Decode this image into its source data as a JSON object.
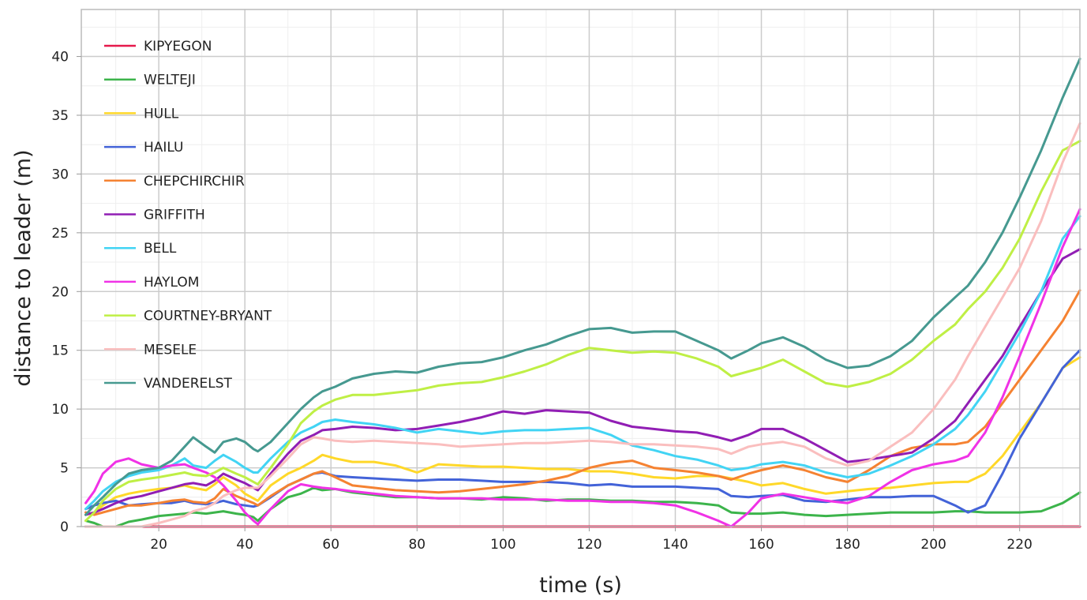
{
  "chart_data": {
    "type": "line",
    "title": "",
    "xlabel": "time (s)",
    "ylabel": "distance to leader (m)",
    "xlim": [
      2,
      234
    ],
    "ylim": [
      0,
      44
    ],
    "x_ticks": [
      20,
      40,
      60,
      80,
      100,
      120,
      140,
      160,
      180,
      200,
      220
    ],
    "y_ticks": [
      0,
      5,
      10,
      15,
      20,
      25,
      30,
      35,
      40
    ],
    "grid": true,
    "legend_position": "top-left",
    "x": [
      3,
      5,
      7,
      10,
      13,
      16,
      20,
      23,
      26,
      28,
      31,
      33,
      35,
      38,
      40,
      42,
      43,
      46,
      50,
      53,
      56,
      58,
      61,
      65,
      70,
      75,
      80,
      85,
      90,
      95,
      100,
      105,
      110,
      115,
      120,
      125,
      130,
      135,
      140,
      145,
      150,
      153,
      157,
      160,
      165,
      170,
      175,
      180,
      185,
      190,
      195,
      200,
      205,
      208,
      212,
      216,
      220,
      225,
      230,
      234
    ],
    "series": [
      {
        "name": "KIPYEGON",
        "color": "#e6194b",
        "values": [
          0,
          0,
          0,
          0,
          0,
          0,
          0,
          0,
          0,
          0,
          0,
          0,
          0,
          0,
          0,
          0,
          0,
          0,
          0,
          0,
          0,
          0,
          0,
          0,
          0,
          0,
          0,
          0,
          0,
          0,
          0,
          0,
          0,
          0,
          0,
          0,
          0,
          0,
          0,
          0,
          0,
          0,
          0,
          0,
          0,
          0,
          0,
          0,
          0,
          0,
          0,
          0,
          0,
          0,
          0,
          0,
          0,
          0,
          0,
          0
        ]
      },
      {
        "name": "WELTEJI",
        "color": "#3cb44b",
        "values": [
          0.5,
          0.3,
          0,
          0,
          0.4,
          0.6,
          0.9,
          1.0,
          1.1,
          1.2,
          1.1,
          1.2,
          1.3,
          1.1,
          1.0,
          0.8,
          0.5,
          1.5,
          2.5,
          2.8,
          3.3,
          3.1,
          3.2,
          2.9,
          2.7,
          2.5,
          2.5,
          2.4,
          2.4,
          2.3,
          2.5,
          2.4,
          2.2,
          2.3,
          2.3,
          2.2,
          2.2,
          2.1,
          2.1,
          2.0,
          1.8,
          1.2,
          1.1,
          1.1,
          1.2,
          1.0,
          0.9,
          1.0,
          1.1,
          1.2,
          1.2,
          1.2,
          1.3,
          1.3,
          1.2,
          1.2,
          1.2,
          1.3,
          2.0,
          2.9
        ]
      },
      {
        "name": "HULL",
        "color": "#ffd829",
        "values": [
          1.0,
          1.2,
          1.8,
          2.5,
          2.8,
          3.0,
          3.2,
          3.3,
          3.5,
          3.3,
          3.1,
          3.6,
          4.2,
          3.5,
          2.8,
          2.4,
          2.2,
          3.5,
          4.5,
          5.0,
          5.6,
          6.1,
          5.8,
          5.5,
          5.5,
          5.2,
          4.6,
          5.3,
          5.2,
          5.1,
          5.1,
          5.0,
          4.9,
          4.9,
          4.7,
          4.7,
          4.5,
          4.2,
          4.1,
          4.3,
          4.3,
          4.1,
          3.8,
          3.5,
          3.7,
          3.2,
          2.8,
          3.0,
          3.2,
          3.3,
          3.5,
          3.7,
          3.8,
          3.8,
          4.5,
          6.0,
          8.0,
          10.5,
          13.5,
          14.4
        ]
      },
      {
        "name": "HAILU",
        "color": "#4363d8",
        "values": [
          1.5,
          1.8,
          2.0,
          2.2,
          1.8,
          1.9,
          2.0,
          2.0,
          2.2,
          2.0,
          1.9,
          2.0,
          2.2,
          1.9,
          1.8,
          1.7,
          1.8,
          2.5,
          3.5,
          4.0,
          4.5,
          4.6,
          4.3,
          4.2,
          4.1,
          4.0,
          3.9,
          4.0,
          4.0,
          3.9,
          3.8,
          3.8,
          3.8,
          3.7,
          3.5,
          3.6,
          3.4,
          3.4,
          3.4,
          3.3,
          3.2,
          2.6,
          2.5,
          2.6,
          2.7,
          2.2,
          2.1,
          2.3,
          2.5,
          2.5,
          2.6,
          2.6,
          1.8,
          1.2,
          1.8,
          4.5,
          7.5,
          10.5,
          13.5,
          15.0
        ]
      },
      {
        "name": "CHEPCHIRCHIR",
        "color": "#f58231",
        "values": [
          1.2,
          1.0,
          1.2,
          1.5,
          1.8,
          1.8,
          2.0,
          2.2,
          2.3,
          2.1,
          2.0,
          2.4,
          3.2,
          2.6,
          2.3,
          2.0,
          1.8,
          2.6,
          3.5,
          4.0,
          4.5,
          4.7,
          4.2,
          3.5,
          3.3,
          3.1,
          3.0,
          2.9,
          3.0,
          3.2,
          3.4,
          3.6,
          3.9,
          4.3,
          5.0,
          5.4,
          5.6,
          5.0,
          4.8,
          4.6,
          4.3,
          4.0,
          4.5,
          4.8,
          5.2,
          4.8,
          4.2,
          3.8,
          4.8,
          6.0,
          6.7,
          7.0,
          7.0,
          7.2,
          8.5,
          10.5,
          12.5,
          15.0,
          17.5,
          20.1
        ]
      },
      {
        "name": "GRIFFITH",
        "color": "#911eb4",
        "values": [
          1.0,
          1.2,
          1.5,
          2.0,
          2.4,
          2.6,
          3.0,
          3.3,
          3.6,
          3.7,
          3.5,
          3.9,
          4.5,
          4.0,
          3.7,
          3.3,
          3.1,
          4.5,
          6.2,
          7.3,
          7.8,
          8.2,
          8.3,
          8.5,
          8.4,
          8.2,
          8.3,
          8.6,
          8.9,
          9.3,
          9.8,
          9.6,
          9.9,
          9.8,
          9.7,
          9.0,
          8.5,
          8.3,
          8.1,
          8.0,
          7.6,
          7.3,
          7.8,
          8.3,
          8.3,
          7.5,
          6.5,
          5.5,
          5.7,
          6.0,
          6.3,
          7.5,
          9.0,
          10.5,
          12.5,
          14.5,
          17.0,
          20.0,
          22.8,
          23.6
        ]
      },
      {
        "name": "BELL",
        "color": "#42d4f4",
        "values": [
          1.5,
          2.2,
          3.0,
          3.8,
          4.3,
          4.6,
          4.8,
          5.2,
          5.8,
          5.2,
          5.0,
          5.6,
          6.1,
          5.5,
          5.0,
          4.6,
          4.6,
          5.8,
          7.2,
          8.0,
          8.5,
          8.9,
          9.1,
          8.9,
          8.7,
          8.4,
          8.0,
          8.3,
          8.1,
          7.9,
          8.1,
          8.2,
          8.2,
          8.3,
          8.4,
          7.8,
          6.9,
          6.5,
          6.0,
          5.7,
          5.2,
          4.8,
          5.0,
          5.3,
          5.5,
          5.2,
          4.6,
          4.2,
          4.5,
          5.2,
          6.0,
          7.0,
          8.3,
          9.5,
          11.5,
          14.0,
          16.5,
          20.0,
          24.5,
          26.4
        ]
      },
      {
        "name": "HAYLOM",
        "color": "#f032e6",
        "values": [
          2.0,
          3.0,
          4.5,
          5.5,
          5.8,
          5.3,
          5.0,
          5.2,
          5.3,
          5.0,
          4.6,
          4.2,
          3.5,
          2.2,
          1.2,
          0.5,
          0.2,
          1.5,
          3.0,
          3.6,
          3.4,
          3.3,
          3.2,
          3.0,
          2.8,
          2.6,
          2.5,
          2.4,
          2.4,
          2.4,
          2.3,
          2.3,
          2.3,
          2.2,
          2.2,
          2.1,
          2.1,
          2.0,
          1.8,
          1.2,
          0.5,
          0,
          1.2,
          2.4,
          2.8,
          2.5,
          2.2,
          2.0,
          2.6,
          3.8,
          4.8,
          5.3,
          5.6,
          6.0,
          8.0,
          11.0,
          14.5,
          19.0,
          23.8,
          27.0
        ]
      },
      {
        "name": "COURTNEY-BRYANT",
        "color": "#bfef45",
        "values": [
          0.5,
          1.2,
          2.2,
          3.2,
          3.8,
          4.0,
          4.2,
          4.4,
          4.6,
          4.4,
          4.3,
          4.6,
          5.0,
          4.5,
          4.2,
          3.8,
          3.6,
          5.0,
          7.0,
          8.8,
          9.8,
          10.3,
          10.8,
          11.2,
          11.2,
          11.4,
          11.6,
          12.0,
          12.2,
          12.3,
          12.7,
          13.2,
          13.8,
          14.6,
          15.2,
          15.0,
          14.8,
          14.9,
          14.8,
          14.3,
          13.6,
          12.8,
          13.2,
          13.5,
          14.2,
          13.2,
          12.2,
          11.9,
          12.3,
          13.0,
          14.2,
          15.8,
          17.2,
          18.5,
          20.0,
          22.0,
          24.5,
          28.5,
          32.0,
          32.8
        ]
      },
      {
        "name": "MESELE",
        "color": "#fabebe",
        "values": [
          0,
          0,
          0,
          0,
          0,
          0,
          0.3,
          0.6,
          0.9,
          1.3,
          1.6,
          2.0,
          2.6,
          3.1,
          3.3,
          3.3,
          3.3,
          4.3,
          5.8,
          7.0,
          7.6,
          7.5,
          7.3,
          7.2,
          7.3,
          7.2,
          7.1,
          7.0,
          6.8,
          6.9,
          7.0,
          7.1,
          7.1,
          7.2,
          7.3,
          7.2,
          7.0,
          7.0,
          6.9,
          6.8,
          6.6,
          6.2,
          6.8,
          7.0,
          7.2,
          6.8,
          5.8,
          5.2,
          5.6,
          6.8,
          8.0,
          10.0,
          12.5,
          14.5,
          17.0,
          19.5,
          22.0,
          26.0,
          31.0,
          34.3
        ]
      },
      {
        "name": "VANDERELST",
        "color": "#469990",
        "values": [
          1.0,
          1.8,
          2.5,
          3.6,
          4.5,
          4.8,
          5.0,
          5.6,
          6.8,
          7.6,
          6.8,
          6.3,
          7.2,
          7.5,
          7.2,
          6.6,
          6.4,
          7.2,
          8.8,
          10.0,
          11.0,
          11.5,
          11.9,
          12.6,
          13.0,
          13.2,
          13.1,
          13.6,
          13.9,
          14.0,
          14.4,
          15.0,
          15.5,
          16.2,
          16.8,
          16.9,
          16.5,
          16.6,
          16.6,
          15.8,
          15.0,
          14.3,
          15.0,
          15.6,
          16.1,
          15.3,
          14.2,
          13.5,
          13.7,
          14.5,
          15.8,
          17.8,
          19.5,
          20.5,
          22.5,
          25.0,
          28.0,
          32.0,
          36.5,
          39.8
        ]
      }
    ]
  }
}
